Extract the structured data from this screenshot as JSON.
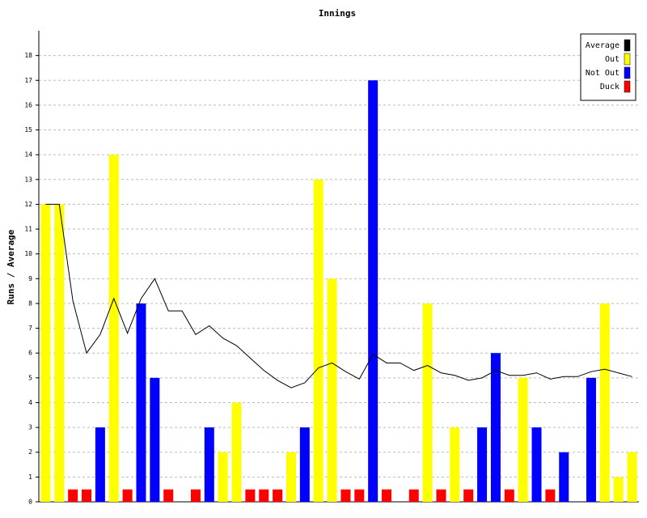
{
  "chart_data": {
    "type": "bar",
    "title": "Innings",
    "y_label": "Runs / Average",
    "ylim": [
      0,
      19
    ],
    "yticks": [
      0,
      1,
      2,
      3,
      4,
      5,
      6,
      7,
      8,
      9,
      10,
      11,
      12,
      13,
      14,
      15,
      16,
      17,
      18
    ],
    "grid": true,
    "legend": "top-right",
    "series": [
      {
        "name": "Average",
        "color": "#000000",
        "kind": "line",
        "values": [
          12,
          12,
          8.1,
          6,
          6.75,
          8.2,
          6.8,
          8.2,
          9,
          7.7,
          7.7,
          6.75,
          7.1,
          6.6,
          6.3,
          5.8,
          5.3,
          4.9,
          4.6,
          4.8,
          5.4,
          5.6,
          5.25,
          4.95,
          5.95,
          5.6,
          5.6,
          5.3,
          5.5,
          5.2,
          5.1,
          4.9,
          5,
          5.3,
          5.1,
          5.1,
          5.2,
          4.95,
          5.05,
          5.05,
          5.25,
          5.35,
          5.2,
          5.05
        ]
      },
      {
        "name": "Out",
        "color": "#ffff00",
        "kind": "bar",
        "values": [
          12,
          12,
          null,
          null,
          null,
          14,
          null,
          null,
          null,
          null,
          null,
          null,
          null,
          2,
          4,
          null,
          null,
          null,
          2,
          null,
          13,
          9,
          null,
          null,
          null,
          null,
          null,
          null,
          8,
          null,
          3,
          null,
          null,
          null,
          null,
          5,
          null,
          null,
          null,
          null,
          null,
          8,
          1,
          2
        ]
      },
      {
        "name": "Not Out",
        "color": "#0000ff",
        "kind": "bar",
        "values": [
          null,
          null,
          null,
          null,
          3,
          null,
          null,
          8,
          5,
          null,
          null,
          null,
          3,
          null,
          null,
          null,
          null,
          null,
          null,
          3,
          null,
          null,
          null,
          null,
          17,
          null,
          null,
          null,
          null,
          null,
          null,
          null,
          3,
          6,
          null,
          null,
          3,
          null,
          2,
          null,
          5,
          null,
          null,
          null
        ]
      },
      {
        "name": "Duck",
        "color": "#ff0000",
        "kind": "bar",
        "values": [
          null,
          null,
          0.5,
          0.5,
          null,
          null,
          0.5,
          null,
          null,
          0.5,
          null,
          0.5,
          null,
          null,
          null,
          0.5,
          0.5,
          0.5,
          null,
          null,
          null,
          null,
          0.5,
          0.5,
          null,
          0.5,
          null,
          0.5,
          null,
          0.5,
          null,
          0.5,
          null,
          null,
          0.5,
          null,
          null,
          0.5,
          null,
          null,
          null,
          null,
          null,
          null
        ]
      }
    ]
  }
}
